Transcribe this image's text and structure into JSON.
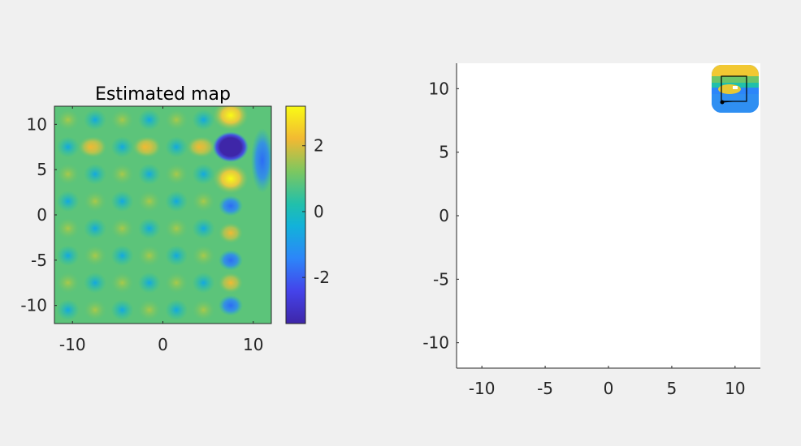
{
  "figure": {
    "background": "#f0f0f0"
  },
  "chart_data": [
    {
      "type": "heatmap",
      "title": "Estimated map",
      "xlabel": "",
      "ylabel": "",
      "xlim": [
        -12,
        12
      ],
      "ylim": [
        -12,
        12
      ],
      "x_ticks": [
        -10,
        0,
        10
      ],
      "y_ticks": [
        -10,
        -5,
        0,
        5,
        10
      ],
      "colormap": "parula",
      "grid": false,
      "colorbar": {
        "range": [
          -3.4,
          3.2
        ],
        "ticks": [
          2,
          0,
          -2
        ],
        "placement": "right"
      },
      "pattern": {
        "description_values": "checkerboard of alternating positive/negative peaks along x≈6-8",
        "peaks": [
          {
            "x": 7.5,
            "y": 11,
            "value": 3.1
          },
          {
            "x": 7.5,
            "y": 7.5,
            "value": -3.4
          },
          {
            "x": 7.5,
            "y": 4,
            "value": 3.0
          },
          {
            "x": 7.5,
            "y": 1,
            "value": -1.8
          },
          {
            "x": 7.5,
            "y": -2,
            "value": 1.8
          },
          {
            "x": 7.5,
            "y": -5,
            "value": -1.6
          },
          {
            "x": 7.5,
            "y": -7.5,
            "value": 1.6
          },
          {
            "x": 7.5,
            "y": -10,
            "value": -1.6
          },
          {
            "x": 4,
            "y": 7.5,
            "value": 1.8
          },
          {
            "x": -2,
            "y": 7.5,
            "value": 1.2
          },
          {
            "x": -8,
            "y": 7.5,
            "value": 1.0
          }
        ]
      }
    },
    {
      "type": "heatmap",
      "title": "",
      "xlabel": "",
      "ylabel": "",
      "xlim": [
        -12,
        12
      ],
      "ylim": [
        -12,
        12
      ],
      "x_ticks": [
        -10,
        -5,
        0,
        5,
        10
      ],
      "y_ticks": [
        10,
        5,
        0,
        -5,
        -10
      ],
      "grid": false,
      "local_patch": {
        "x_range": [
          8.2,
          11.8
        ],
        "y_range": [
          8.2,
          11.8
        ],
        "box": {
          "x_range": [
            9,
            11
          ],
          "y_range": [
            9,
            11
          ]
        },
        "marker": {
          "x": 9.0,
          "y": 9.2
        },
        "bright_spot": {
          "x": 10.0,
          "y": 10.0
        }
      }
    }
  ],
  "tick_labels": {
    "left_x": [
      "-10",
      "0",
      "10"
    ],
    "left_y": [
      "10",
      "5",
      "0",
      "-5",
      "-10"
    ],
    "colorbar": [
      "2",
      "0",
      "-2"
    ],
    "right_x": [
      "-10",
      "-5",
      "0",
      "5",
      "10"
    ],
    "right_y": [
      "10",
      "5",
      "0",
      "-5",
      "-10"
    ]
  }
}
